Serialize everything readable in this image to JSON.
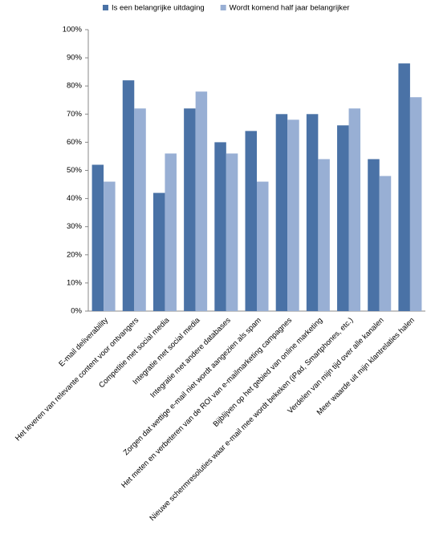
{
  "chart_data": {
    "type": "bar",
    "categories": [
      "E-mail deliverability",
      "Het leveren van relevante content voor ontvangers",
      "Competitie met social media",
      "Integratie met social media",
      "Integratie met andere databases",
      "Zorgen dat wettige e-mail niet wordt aangezien als spam",
      "Het meten en verbeteren van de ROI van e-mailmarketing campagnes",
      "Bijblijven op het gebied van online marketing",
      "Nieuwe schermresoluties waar e-mail mee wordt bekeken (iPad, Smartphones, etc.)",
      "Verdelen van mijn tijd over alle kanalen",
      "Meer waarde uit mijn klantrelaties halen"
    ],
    "series": [
      {
        "name": "Is een belangrijke uitdaging",
        "color": "#4a72a6",
        "values": [
          52,
          82,
          42,
          72,
          60,
          64,
          70,
          70,
          66,
          54,
          88
        ]
      },
      {
        "name": "Wordt komend half jaar belangrijker",
        "color": "#98afd4",
        "values": [
          46,
          72,
          56,
          78,
          56,
          46,
          68,
          54,
          72,
          48,
          76
        ]
      }
    ],
    "ylim": [
      0,
      100
    ],
    "yticks": [
      {
        "value": 0,
        "label": "0%"
      },
      {
        "value": 10,
        "label": "10%"
      },
      {
        "value": 20,
        "label": "20%"
      },
      {
        "value": 30,
        "label": "30%"
      },
      {
        "value": 40,
        "label": "40%"
      },
      {
        "value": 50,
        "label": "50%"
      },
      {
        "value": 60,
        "label": "60%"
      },
      {
        "value": 70,
        "label": "70%"
      },
      {
        "value": 80,
        "label": "80%"
      },
      {
        "value": 90,
        "label": "90%"
      },
      {
        "value": 100,
        "label": "100%"
      }
    ],
    "grid": false,
    "legend": "top"
  }
}
